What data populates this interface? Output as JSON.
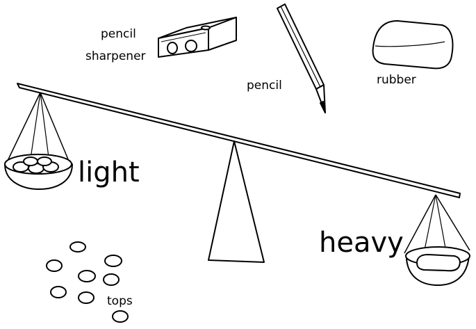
{
  "labels": {
    "pencil_sharpener_line1": "pencil",
    "pencil_sharpener_line2": "sharpener",
    "pencil": "pencil",
    "rubber": "rubber",
    "light": "light",
    "heavy": "heavy",
    "tops": "tops"
  },
  "colors": {
    "ink": "#000000",
    "paper": "#ffffff"
  }
}
